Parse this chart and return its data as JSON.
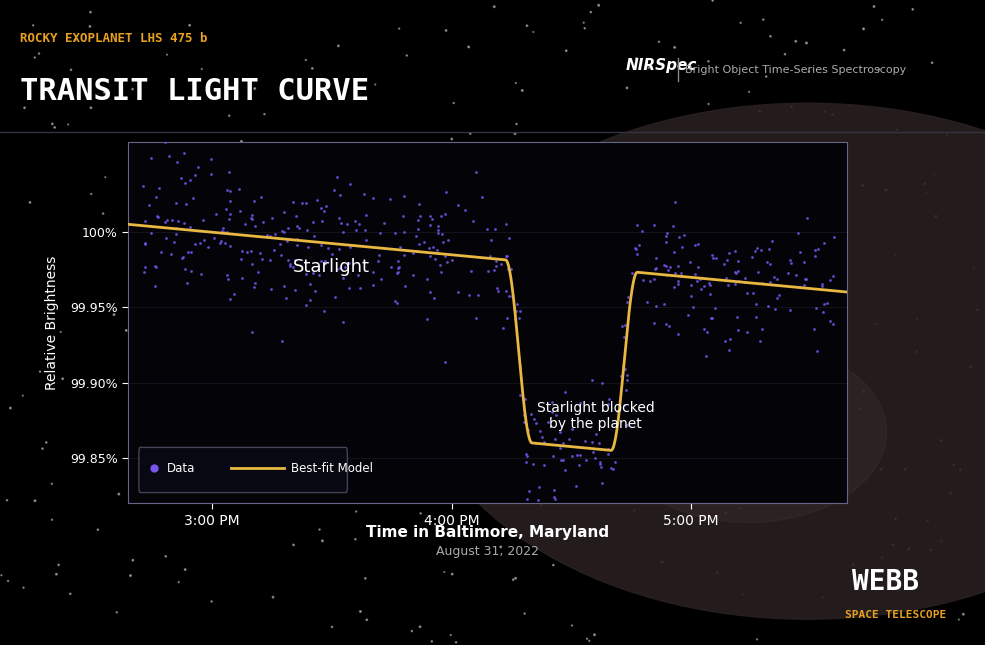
{
  "bg_color": "#000000",
  "plot_bg_color": "#050510",
  "title_small": "ROCKY EXOPLANET LHS 475 b",
  "title_large": "TRANSIT LIGHT CURVE",
  "title_small_color": "#e8a020",
  "title_large_color": "#ffffff",
  "nirspec_text": "NIRSpec",
  "nirspec_sub": "Bright Object Time-Series Spectroscopy",
  "xlabel": "Time in Baltimore, Maryland",
  "xlabel_sub": "August 31, 2022",
  "ylabel": "Relative Brightness",
  "ytick_vals": [
    99.85,
    99.9,
    99.95,
    100.0
  ],
  "ytick_labels": [
    "99.85%",
    "99.90%",
    "99.95%",
    "100%"
  ],
  "xtick_labels": [
    "3:00 PM",
    "4:00 PM",
    "5:00 PM"
  ],
  "xtick_positions": [
    0.0,
    1.0,
    2.0
  ],
  "data_color": "#7755ee",
  "model_color": "#e8b840",
  "starlight_label": "Starlight",
  "blocked_label": "Starlight blocked\nby the planet",
  "legend_data_label": "Data",
  "legend_model_label": "Best-fit Model",
  "webb_text": "WEBB",
  "webb_sub": "SPACE TELESCOPE",
  "transit_start": 1.28,
  "transit_end": 1.72,
  "transit_depth": 0.12,
  "x_min": -0.35,
  "x_max": 2.65,
  "y_min": 99.82,
  "y_max": 100.06
}
